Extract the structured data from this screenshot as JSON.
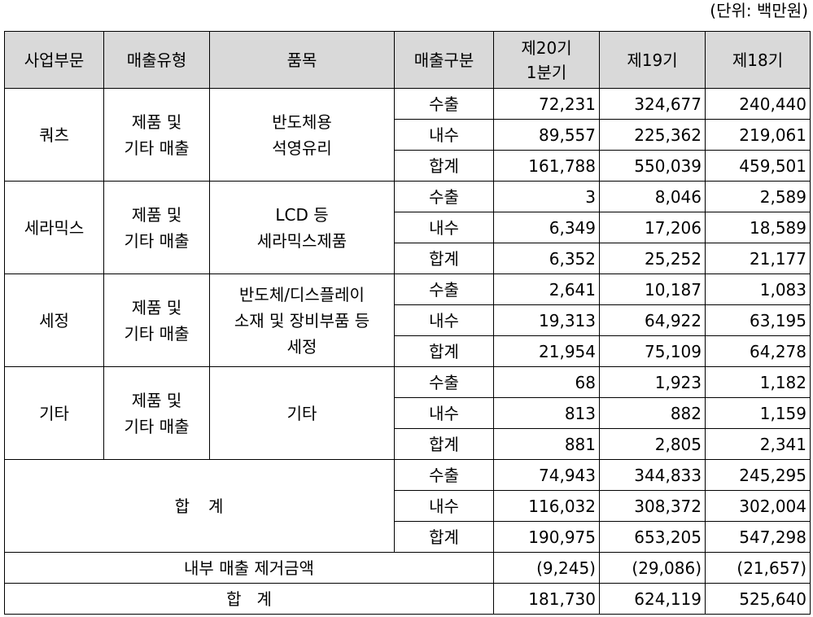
{
  "unit_note": "(단위: 백만원)",
  "headers": {
    "segment": "사업부문",
    "sales_type": "매출유형",
    "item": "품목",
    "sales_class": "매출구분",
    "p20_line1": "제20기",
    "p20_line2": "1분기",
    "p19": "제19기",
    "p18": "제18기"
  },
  "segments": [
    {
      "segment": "쿼츠",
      "type_lines": [
        "제품 및",
        "기타 매출"
      ],
      "item_lines": [
        "반도체용",
        "석영유리"
      ],
      "rows": [
        {
          "class": "수출",
          "p20": "72,231",
          "p19": "324,677",
          "p18": "240,440"
        },
        {
          "class": "내수",
          "p20": "89,557",
          "p19": "225,362",
          "p18": "219,061"
        },
        {
          "class": "합계",
          "p20": "161,788",
          "p19": "550,039",
          "p18": "459,501"
        }
      ]
    },
    {
      "segment": "세라믹스",
      "type_lines": [
        "제품 및",
        "기타 매출"
      ],
      "item_lines": [
        "LCD 등",
        "세라믹스제품"
      ],
      "rows": [
        {
          "class": "수출",
          "p20": "3",
          "p19": "8,046",
          "p18": "2,589"
        },
        {
          "class": "내수",
          "p20": "6,349",
          "p19": "17,206",
          "p18": "18,589"
        },
        {
          "class": "합계",
          "p20": "6,352",
          "p19": "25,252",
          "p18": "21,177"
        }
      ]
    },
    {
      "segment": "세정",
      "type_lines": [
        "제품 및",
        "기타 매출"
      ],
      "item_lines": [
        "반도체/디스플레이",
        "소재 및 장비부품 등",
        "세정"
      ],
      "rows": [
        {
          "class": "수출",
          "p20": "2,641",
          "p19": "10,187",
          "p18": "1,083"
        },
        {
          "class": "내수",
          "p20": "19,313",
          "p19": "64,922",
          "p18": "63,195"
        },
        {
          "class": "합계",
          "p20": "21,954",
          "p19": "75,109",
          "p18": "64,278"
        }
      ]
    },
    {
      "segment": "기타",
      "type_lines": [
        "제품 및",
        "기타 매출"
      ],
      "item_lines": [
        "기타"
      ],
      "rows": [
        {
          "class": "수출",
          "p20": "68",
          "p19": "1,923",
          "p18": "1,182"
        },
        {
          "class": "내수",
          "p20": "813",
          "p19": "882",
          "p18": "1,159"
        },
        {
          "class": "합계",
          "p20": "881",
          "p19": "2,805",
          "p18": "2,341"
        }
      ]
    }
  ],
  "total": {
    "label": "합   계",
    "rows": [
      {
        "class": "수출",
        "p20": "74,943",
        "p19": "344,833",
        "p18": "245,295"
      },
      {
        "class": "내수",
        "p20": "116,032",
        "p19": "308,372",
        "p18": "302,004"
      },
      {
        "class": "합계",
        "p20": "190,975",
        "p19": "653,205",
        "p18": "547,298"
      }
    ]
  },
  "elimination": {
    "label": "내부 매출 제거금액",
    "p20": "(9,245)",
    "p19": "(29,086)",
    "p18": "(21,657)"
  },
  "grand_total": {
    "label": "합   계",
    "p20": "181,730",
    "p19": "624,119",
    "p18": "525,640"
  }
}
